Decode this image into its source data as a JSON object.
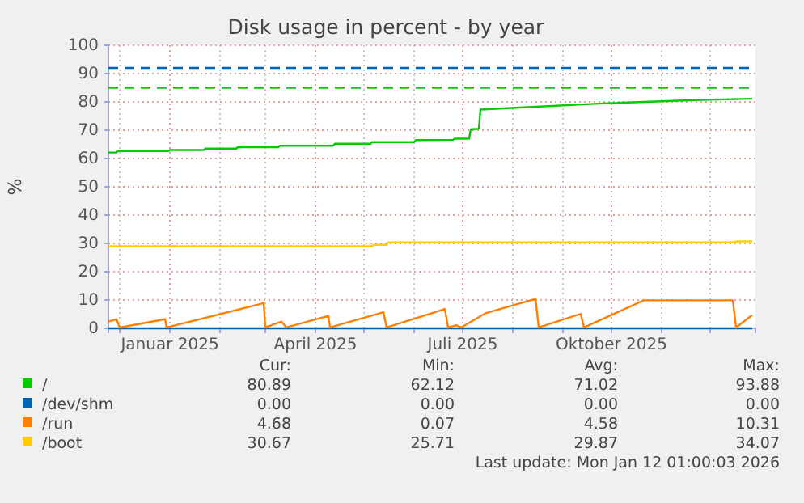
{
  "chart_data": {
    "type": "line",
    "title": "Disk usage in percent - by year",
    "ylabel": "%",
    "xlim": [
      "2024-11-24",
      "2025-12-29"
    ],
    "xticks": [
      {
        "value": "2024-12-01",
        "label": null
      },
      {
        "value": "2025-01-01",
        "label": "Januar 2025"
      },
      {
        "value": "2025-02-01",
        "label": null
      },
      {
        "value": "2025-03-01",
        "label": null
      },
      {
        "value": "2025-04-01",
        "label": "April 2025"
      },
      {
        "value": "2025-05-01",
        "label": null
      },
      {
        "value": "2025-06-01",
        "label": null
      },
      {
        "value": "2025-07-01",
        "label": "Juli 2025"
      },
      {
        "value": "2025-08-01",
        "label": null
      },
      {
        "value": "2025-09-01",
        "label": null
      },
      {
        "value": "2025-10-01",
        "label": "Oktober 2025"
      },
      {
        "value": "2025-11-01",
        "label": null
      },
      {
        "value": "2025-12-01",
        "label": null
      }
    ],
    "ylim": [
      0,
      100
    ],
    "yticks": [
      0,
      10,
      20,
      30,
      40,
      50,
      60,
      70,
      80,
      90,
      100
    ],
    "grid": true,
    "legend": "bottom",
    "ref_lines": [
      {
        "axis": "y",
        "value": 92,
        "color": "#0066b3",
        "line_style": "dashed"
      },
      {
        "axis": "y",
        "value": 85,
        "color": "#00cc00",
        "line_style": "dashed"
      }
    ],
    "series": [
      {
        "name": "/",
        "color": "#00cc00",
        "x": [
          "2024-11-24",
          "2024-11-29",
          "2024-11-30",
          "2024-12-31",
          "2025-01-01",
          "2025-01-22",
          "2025-01-23",
          "2025-02-11",
          "2025-02-12",
          "2025-03-09",
          "2025-03-10",
          "2025-04-12",
          "2025-04-13",
          "2025-05-05",
          "2025-05-06",
          "2025-06-01",
          "2025-06-02",
          "2025-06-25",
          "2025-06-26",
          "2025-07-05",
          "2025-07-06",
          "2025-07-11",
          "2025-07-12",
          "2025-08-05",
          "2025-09-23",
          "2025-11-25",
          "2025-12-27"
        ],
        "values": [
          62.1,
          62.1,
          62.6,
          62.6,
          63.0,
          63.0,
          63.5,
          63.5,
          64.0,
          64.0,
          64.5,
          64.5,
          65.2,
          65.2,
          65.8,
          65.8,
          66.5,
          66.6,
          67.0,
          67.0,
          70.3,
          70.5,
          77.3,
          78.0,
          79.4,
          80.7,
          81.1
        ]
      },
      {
        "name": "/dev/shm",
        "color": "#0066b3",
        "x": [
          "2024-11-24",
          "2025-12-27"
        ],
        "values": [
          0,
          0
        ]
      },
      {
        "name": "/run",
        "color": "#ff8000",
        "x": [
          "2024-11-24",
          "2024-11-29",
          "2024-12-01",
          "2024-12-29",
          "2024-12-30",
          "2025-02-28",
          "2025-03-01",
          "2025-03-11",
          "2025-03-14",
          "2025-04-09",
          "2025-04-10",
          "2025-05-13",
          "2025-05-15",
          "2025-06-20",
          "2025-06-22",
          "2025-06-27",
          "2025-06-30",
          "2025-07-15",
          "2025-08-15",
          "2025-08-17",
          "2025-09-12",
          "2025-09-14",
          "2025-10-21",
          "2025-12-15",
          "2025-12-17",
          "2025-12-27"
        ],
        "values": [
          2.4,
          3.2,
          0.3,
          3.2,
          0.3,
          8.9,
          0.3,
          2.4,
          0.3,
          4.4,
          0.3,
          5.7,
          0.3,
          6.8,
          0.3,
          1.1,
          0.3,
          5.3,
          10.4,
          0.3,
          5.1,
          0.3,
          9.9,
          9.9,
          0.3,
          4.7
        ]
      },
      {
        "name": "/boot",
        "color": "#ffcc00",
        "x": [
          "2024-11-24",
          "2025-05-06",
          "2025-05-07",
          "2025-05-15",
          "2025-05-16",
          "2025-12-16",
          "2025-12-17",
          "2025-12-27"
        ],
        "values": [
          29.0,
          29.0,
          29.5,
          29.5,
          30.4,
          30.4,
          30.7,
          30.7
        ]
      }
    ],
    "annotations": [
      "Cur:",
      "Min:",
      "Avg:",
      "Max:",
      "80.89",
      "62.12",
      "71.02",
      "93.88",
      "0.00",
      "0.00",
      "0.00",
      "0.00",
      "4.68",
      "0.07",
      "4.58",
      "10.31",
      "30.67",
      "25.71",
      "29.87",
      "34.07",
      "Last update: Mon Jan 12 01:00:03 2026"
    ]
  }
}
